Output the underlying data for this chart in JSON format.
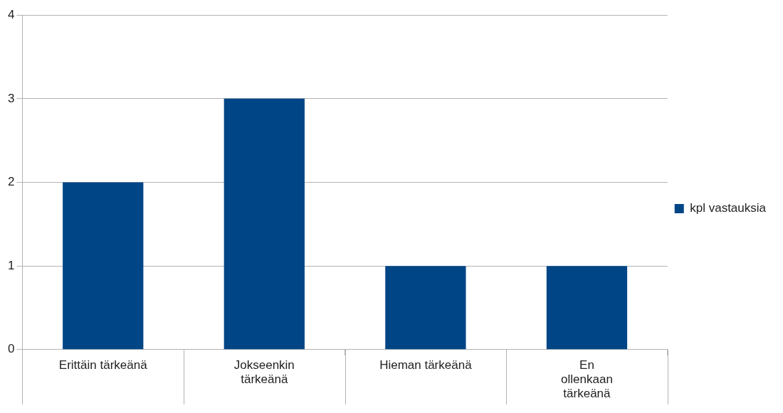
{
  "chart_data": {
    "type": "bar",
    "categories": [
      "Erittäin tärkeänä",
      "Jokseenkin tärkeänä",
      "Hieman tärkeänä",
      "En ollenkaan tärkeänä"
    ],
    "series": [
      {
        "name": "kpl vastauksia",
        "color": "#004586",
        "values": [
          2,
          3,
          1,
          1
        ]
      }
    ],
    "ylim": [
      0,
      4
    ],
    "yticks": [
      0,
      1,
      2,
      3,
      4
    ],
    "grid": "y",
    "legend": "right"
  }
}
